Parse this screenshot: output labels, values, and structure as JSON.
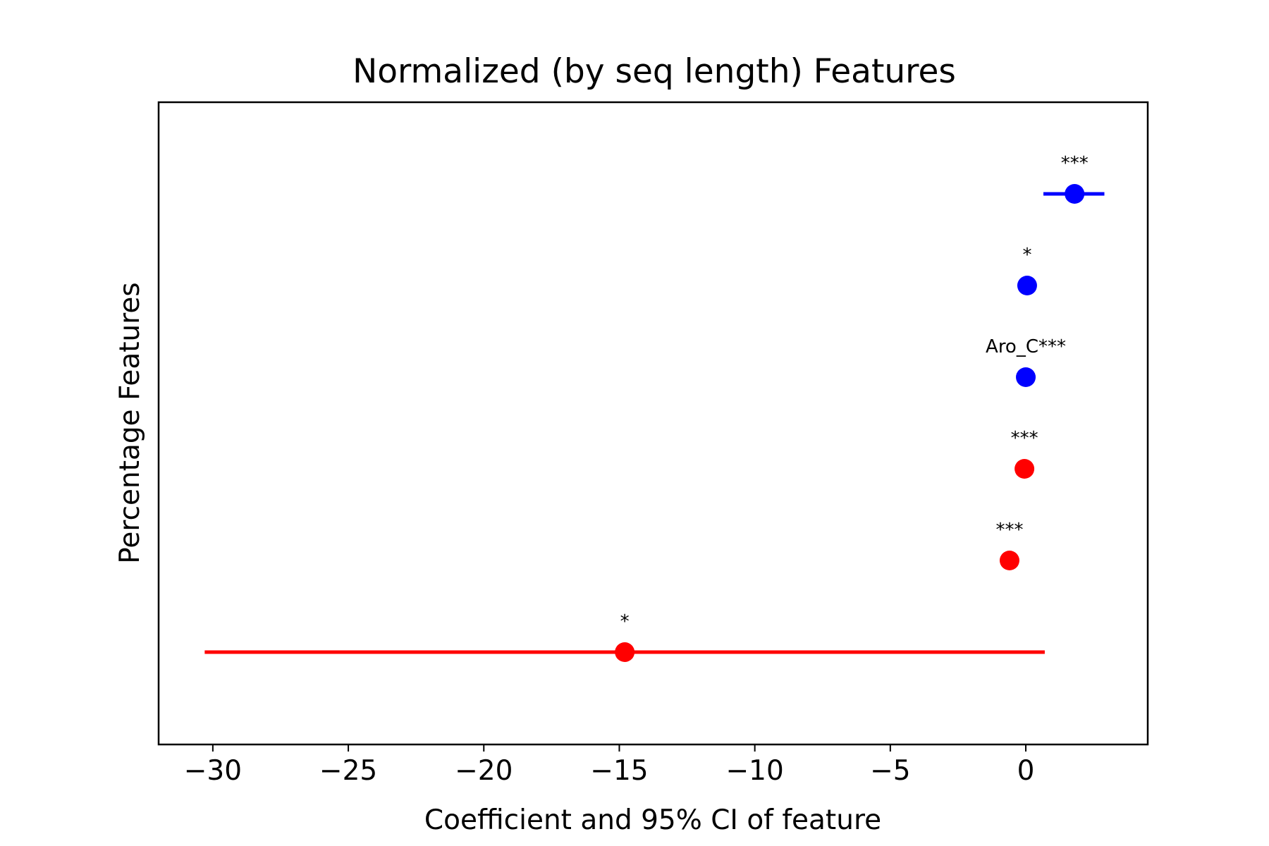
{
  "chart_data": {
    "type": "scatter",
    "title": "Normalized (by seq length) Features",
    "xlabel": "Coefficient and 95% CI of feature",
    "ylabel": "Percentage Features",
    "xlim": [
      -32,
      4.5
    ],
    "xticks": [
      -30,
      -25,
      -20,
      -15,
      -10,
      -5,
      0
    ],
    "xtick_labels": [
      "−30",
      "−25",
      "−20",
      "−15",
      "−10",
      "−5",
      "0"
    ],
    "grid": false,
    "legend": "none",
    "points": [
      {
        "coef": 1.8,
        "ci_low": 0.65,
        "ci_high": 2.9,
        "color": "#0000ff",
        "annotation": "***"
      },
      {
        "coef": 0.05,
        "ci_low": 0.0,
        "ci_high": 0.1,
        "color": "#0000ff",
        "annotation": "*"
      },
      {
        "coef": 0.0,
        "ci_low": -0.05,
        "ci_high": 0.05,
        "color": "#0000ff",
        "annotation": "Aro_C***"
      },
      {
        "coef": -0.05,
        "ci_low": -0.1,
        "ci_high": 0.0,
        "color": "#ff0000",
        "annotation": "***"
      },
      {
        "coef": -0.6,
        "ci_low": -0.95,
        "ci_high": -0.25,
        "color": "#ff0000",
        "annotation": "***"
      },
      {
        "coef": -14.8,
        "ci_low": -30.3,
        "ci_high": 0.7,
        "color": "#ff0000",
        "annotation": "*"
      }
    ]
  }
}
